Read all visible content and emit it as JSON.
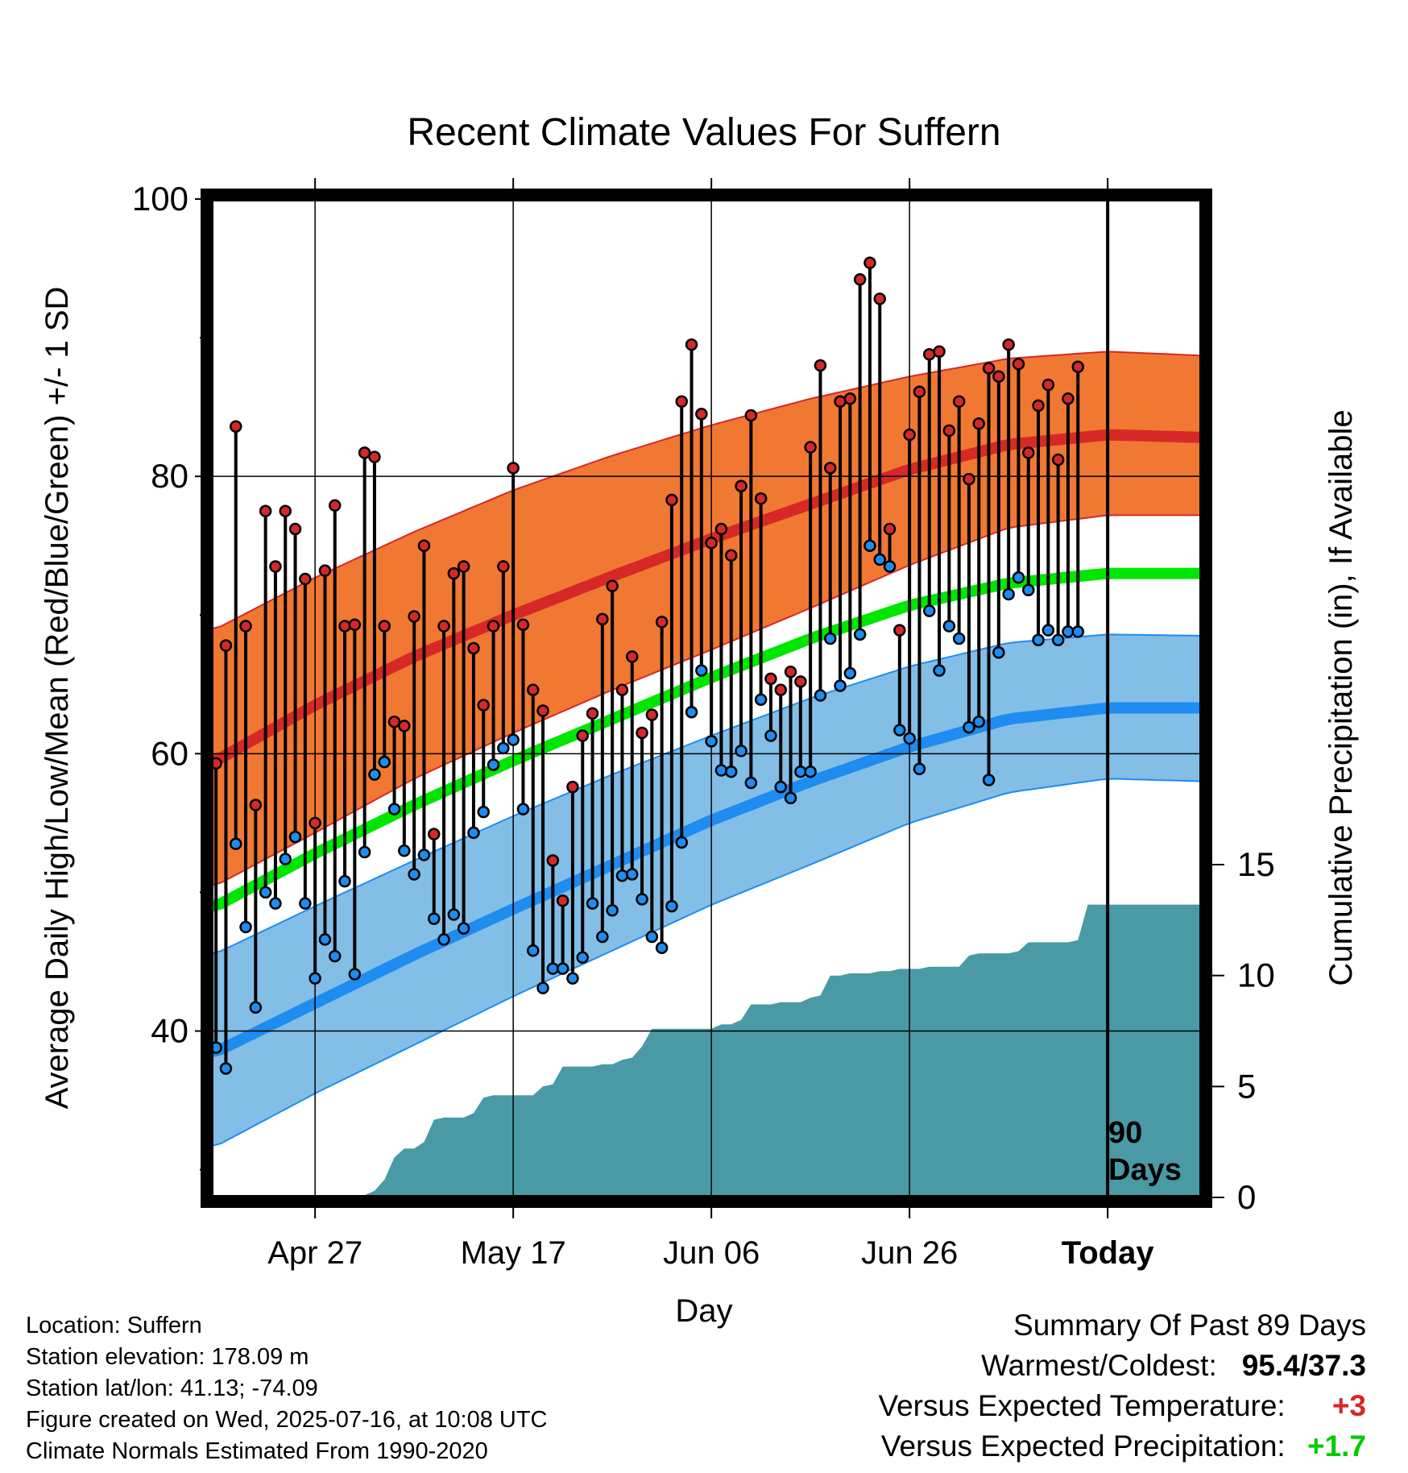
{
  "chart_data": {
    "type": "line",
    "title": "Recent Climate Values For Suffern",
    "xlabel": "Day",
    "ylabel_left": "Average Daily High/Low/Mean (Red/Blue/Green) +/- 1 SD",
    "ylabel_right": "Cumulative Precipitation (in), If Available",
    "y_left_range": [
      28,
      100
    ],
    "y_left_ticks": [
      "100",
      "80",
      "60",
      "40"
    ],
    "y_right_range": [
      0,
      45
    ],
    "y_right_ticks": [
      "0",
      "5",
      "10",
      "15"
    ],
    "x_ticks": [
      "Apr 27",
      "May 17",
      "Jun 06",
      "Jun 26",
      "Today"
    ],
    "x_tick_days": [
      10,
      30,
      50,
      70,
      90
    ],
    "x_range": [
      -0.5,
      99.5
    ],
    "today_day": 90,
    "today_marker_label": [
      "90",
      "Days"
    ],
    "normal_high": {
      "mean": [
        [
          0,
          59.5
        ],
        [
          10,
          63.5
        ],
        [
          20,
          67.0
        ],
        [
          30,
          70.0
        ],
        [
          40,
          72.8
        ],
        [
          50,
          75.5
        ],
        [
          60,
          78.0
        ],
        [
          70,
          80.5
        ],
        [
          80,
          82.3
        ],
        [
          90,
          83.0
        ],
        [
          100,
          82.8
        ]
      ],
      "upper": [
        [
          0,
          69.0
        ],
        [
          10,
          72.7
        ],
        [
          20,
          76.0
        ],
        [
          30,
          79.0
        ],
        [
          40,
          81.5
        ],
        [
          50,
          83.7
        ],
        [
          60,
          85.6
        ],
        [
          70,
          87.2
        ],
        [
          80,
          88.5
        ],
        [
          90,
          89.0
        ],
        [
          100,
          88.7
        ]
      ],
      "lower": [
        [
          0,
          50.5
        ],
        [
          10,
          54.3
        ],
        [
          20,
          58.2
        ],
        [
          30,
          61.5
        ],
        [
          40,
          64.6
        ],
        [
          50,
          67.5
        ],
        [
          60,
          70.5
        ],
        [
          70,
          73.6
        ],
        [
          80,
          76.3
        ],
        [
          90,
          77.2
        ],
        [
          100,
          77.2
        ]
      ]
    },
    "normal_low": {
      "mean": [
        [
          0,
          38.5
        ],
        [
          10,
          42.0
        ],
        [
          20,
          45.5
        ],
        [
          30,
          48.8
        ],
        [
          40,
          52.0
        ],
        [
          50,
          55.2
        ],
        [
          60,
          58.0
        ],
        [
          70,
          60.5
        ],
        [
          80,
          62.5
        ],
        [
          90,
          63.3
        ],
        [
          100,
          63.3
        ]
      ],
      "upper": [
        [
          0,
          45.6
        ],
        [
          10,
          49.0
        ],
        [
          20,
          52.3
        ],
        [
          30,
          55.5
        ],
        [
          40,
          58.5
        ],
        [
          50,
          61.3
        ],
        [
          60,
          64.0
        ],
        [
          70,
          66.3
        ],
        [
          80,
          68.0
        ],
        [
          90,
          68.6
        ],
        [
          100,
          68.5
        ]
      ],
      "lower": [
        [
          0,
          31.7
        ],
        [
          10,
          35.5
        ],
        [
          20,
          39.0
        ],
        [
          30,
          42.5
        ],
        [
          40,
          45.8
        ],
        [
          50,
          49.1
        ],
        [
          60,
          52.0
        ],
        [
          70,
          55.0
        ],
        [
          80,
          57.2
        ],
        [
          90,
          58.2
        ],
        [
          100,
          58.0
        ]
      ]
    },
    "normal_mean": [
      [
        0,
        49.0
      ],
      [
        10,
        52.8
      ],
      [
        20,
        56.3
      ],
      [
        30,
        59.5
      ],
      [
        40,
        62.5
      ],
      [
        50,
        65.5
      ],
      [
        60,
        68.3
      ],
      [
        70,
        70.7
      ],
      [
        80,
        72.3
      ],
      [
        90,
        73.0
      ],
      [
        100,
        73.0
      ]
    ],
    "observed_highs": [
      59.3,
      67.8,
      83.6,
      69.2,
      56.3,
      77.5,
      73.5,
      77.5,
      76.2,
      72.6,
      55.0,
      73.2,
      77.9,
      69.2,
      69.3,
      81.7,
      81.4,
      69.2,
      62.3,
      62.0,
      69.9,
      75.0,
      54.2,
      69.2,
      73.0,
      73.5,
      67.6,
      63.5,
      69.2,
      73.5,
      80.6,
      69.3,
      64.6,
      63.1,
      52.3,
      49.4,
      57.6,
      61.3,
      62.9,
      69.7,
      72.1,
      64.6,
      67.0,
      61.5,
      62.8,
      69.5,
      78.3,
      85.4,
      89.5,
      84.5,
      75.2,
      76.2,
      74.3,
      79.3,
      84.4,
      78.4,
      65.4,
      64.6,
      65.9,
      65.2,
      82.1,
      88.0,
      80.6,
      85.4,
      85.6,
      94.2,
      95.4,
      92.8,
      76.2,
      68.9,
      83.0,
      86.1,
      88.8,
      89.0,
      83.3,
      85.4,
      79.8,
      83.8,
      87.8,
      87.2,
      89.5,
      88.1,
      81.7,
      85.1,
      86.6,
      81.2,
      85.6,
      87.9
    ],
    "observed_lows": [
      38.8,
      37.3,
      53.5,
      47.5,
      41.7,
      50.0,
      49.2,
      52.4,
      54.0,
      49.2,
      43.8,
      46.6,
      45.4,
      50.8,
      44.1,
      52.9,
      58.5,
      59.4,
      56.0,
      53.0,
      51.3,
      52.7,
      48.1,
      46.6,
      48.4,
      47.4,
      54.3,
      55.8,
      59.2,
      60.4,
      61.0,
      56.0,
      45.8,
      43.1,
      44.5,
      44.5,
      43.8,
      45.3,
      49.2,
      46.8,
      48.7,
      51.2,
      51.3,
      49.5,
      46.8,
      46.0,
      49.0,
      53.6,
      63.0,
      66.0,
      60.9,
      58.8,
      58.7,
      60.2,
      57.9,
      63.9,
      61.3,
      57.6,
      56.8,
      58.7,
      58.7,
      64.2,
      68.3,
      64.9,
      65.8,
      68.6,
      75.0,
      74.0,
      73.5,
      61.7,
      61.1,
      58.9,
      70.3,
      66.0,
      69.2,
      68.3,
      61.9,
      62.3,
      58.1,
      67.3,
      71.5,
      72.7,
      71.8,
      68.2,
      68.9,
      68.2,
      68.8,
      68.8,
      69.7
    ],
    "cumulative_precip": [
      [
        -0.5,
        0
      ],
      [
        15,
        0.1
      ],
      [
        16,
        0.3
      ],
      [
        17,
        0.8
      ],
      [
        18,
        1.8
      ],
      [
        19,
        2.2
      ],
      [
        20,
        2.2
      ],
      [
        21,
        2.5
      ],
      [
        22,
        3.5
      ],
      [
        23,
        3.6
      ],
      [
        24,
        3.6
      ],
      [
        25,
        3.6
      ],
      [
        26,
        3.8
      ],
      [
        27,
        4.5
      ],
      [
        28,
        4.6
      ],
      [
        29,
        4.6
      ],
      [
        30,
        4.6
      ],
      [
        31,
        4.6
      ],
      [
        32,
        4.6
      ],
      [
        33,
        5.0
      ],
      [
        34,
        5.1
      ],
      [
        35,
        5.9
      ],
      [
        36,
        5.9
      ],
      [
        37,
        5.9
      ],
      [
        38,
        5.9
      ],
      [
        39,
        6.0
      ],
      [
        40,
        6.0
      ],
      [
        41,
        6.2
      ],
      [
        42,
        6.3
      ],
      [
        43,
        6.8
      ],
      [
        44,
        7.6
      ],
      [
        45,
        7.6
      ],
      [
        46,
        7.6
      ],
      [
        47,
        7.6
      ],
      [
        48,
        7.6
      ],
      [
        49,
        7.6
      ],
      [
        50,
        7.6
      ],
      [
        51,
        7.8
      ],
      [
        52,
        7.8
      ],
      [
        53,
        8.0
      ],
      [
        54,
        8.7
      ],
      [
        55,
        8.7
      ],
      [
        56,
        8.7
      ],
      [
        57,
        8.8
      ],
      [
        58,
        8.8
      ],
      [
        59,
        8.8
      ],
      [
        60,
        9.0
      ],
      [
        61,
        9.1
      ],
      [
        62,
        10.0
      ],
      [
        63,
        10.0
      ],
      [
        64,
        10.1
      ],
      [
        65,
        10.1
      ],
      [
        66,
        10.1
      ],
      [
        67,
        10.2
      ],
      [
        68,
        10.2
      ],
      [
        69,
        10.3
      ],
      [
        70,
        10.3
      ],
      [
        71,
        10.3
      ],
      [
        72,
        10.4
      ],
      [
        73,
        10.4
      ],
      [
        74,
        10.4
      ],
      [
        75,
        10.4
      ],
      [
        76,
        10.9
      ],
      [
        77,
        11.0
      ],
      [
        78,
        11.0
      ],
      [
        79,
        11.0
      ],
      [
        80,
        11.0
      ],
      [
        81,
        11.1
      ],
      [
        82,
        11.5
      ],
      [
        83,
        11.5
      ],
      [
        84,
        11.5
      ],
      [
        85,
        11.5
      ],
      [
        86,
        11.5
      ],
      [
        87,
        11.6
      ],
      [
        88,
        13.2
      ],
      [
        89.3,
        13.2
      ],
      [
        99.5,
        13.2
      ]
    ],
    "colors": {
      "high_band": "#f07832",
      "high_mean": "#d72828",
      "low_band": "#82bee6",
      "low_mean": "#1e8cf0",
      "mean_line": "#00e600",
      "precip": "#4a9aa6",
      "high_dot": "#d72828",
      "low_dot": "#1e8cf0",
      "warm_anomaly": "#d72828",
      "wet_anomaly": "#00cc00"
    }
  },
  "location_info": {
    "location": "Location: Suffern",
    "elevation": "Station elevation: 178.09 m",
    "latlon": "Station lat/lon: 41.13; -74.09",
    "created": "Figure created on Wed, 2025-07-16, at 10:08 UTC",
    "normals": "Climate Normals Estimated From 1990-2020"
  },
  "summary": {
    "title": "Summary Of Past 89 Days",
    "warm_cold_label": "Warmest/Coldest:",
    "warm_cold_value": "95.4/37.3",
    "temp_label": "Versus Expected Temperature:",
    "temp_value": "+3",
    "precip_label": "Versus Expected Precipitation:",
    "precip_value": "+1.7"
  }
}
